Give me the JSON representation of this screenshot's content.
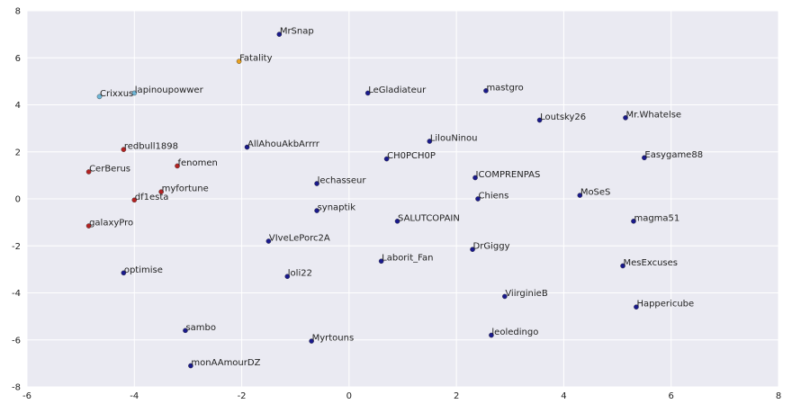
{
  "chart_data": {
    "type": "scatter",
    "title": "",
    "xlabel": "",
    "ylabel": "",
    "xlim": [
      -6,
      8
    ],
    "ylim": [
      -8,
      8
    ],
    "xticks": [
      -6,
      -4,
      -2,
      0,
      2,
      4,
      6,
      8
    ],
    "yticks": [
      -8,
      -6,
      -4,
      -2,
      0,
      2,
      4,
      6,
      8
    ],
    "grid": true,
    "colors": {
      "background": "#eaeaf2",
      "grid": "#ffffff",
      "navy": "#1a1a8c",
      "red": "#b22222",
      "orange": "#e8a020",
      "light_blue": "#6fb7d8"
    },
    "points": [
      {
        "label": "MrSnap",
        "x": -1.3,
        "y": 7.0,
        "color": "navy"
      },
      {
        "label": "Fatality",
        "x": -2.05,
        "y": 5.85,
        "color": "orange"
      },
      {
        "label": "Crixxus",
        "x": -4.65,
        "y": 4.35,
        "color": "light_blue"
      },
      {
        "label": "lapinoupowwer",
        "x": -4.0,
        "y": 4.5,
        "color": "light_blue"
      },
      {
        "label": "LeGladiateur",
        "x": 0.35,
        "y": 4.5,
        "color": "navy"
      },
      {
        "label": "mastgro",
        "x": 2.55,
        "y": 4.6,
        "color": "navy"
      },
      {
        "label": "Mr.Whatelse",
        "x": 5.15,
        "y": 3.45,
        "color": "navy"
      },
      {
        "label": "Loutsky26",
        "x": 3.55,
        "y": 3.35,
        "color": "navy"
      },
      {
        "label": "LilouNinou",
        "x": 1.5,
        "y": 2.45,
        "color": "navy"
      },
      {
        "label": "AllAhouAkbArrrr",
        "x": -1.9,
        "y": 2.2,
        "color": "navy"
      },
      {
        "label": "redbull1898",
        "x": -4.2,
        "y": 2.1,
        "color": "red"
      },
      {
        "label": "CH0PCH0P",
        "x": 0.7,
        "y": 1.7,
        "color": "navy"
      },
      {
        "label": "Easygame88",
        "x": 5.5,
        "y": 1.75,
        "color": "navy"
      },
      {
        "label": "fenomen",
        "x": -3.2,
        "y": 1.4,
        "color": "red"
      },
      {
        "label": "CerBerus",
        "x": -4.85,
        "y": 1.15,
        "color": "red"
      },
      {
        "label": "ICOMPRENPAS",
        "x": 2.35,
        "y": 0.9,
        "color": "navy"
      },
      {
        "label": "lechasseur",
        "x": -0.6,
        "y": 0.65,
        "color": "navy"
      },
      {
        "label": "myfortune",
        "x": -3.5,
        "y": 0.3,
        "color": "red"
      },
      {
        "label": "MoSeS",
        "x": 4.3,
        "y": 0.15,
        "color": "navy"
      },
      {
        "label": "Chiens",
        "x": 2.4,
        "y": 0.0,
        "color": "navy"
      },
      {
        "label": "df1esta",
        "x": -4.0,
        "y": -0.05,
        "color": "red"
      },
      {
        "label": "synaptik",
        "x": -0.6,
        "y": -0.5,
        "color": "navy"
      },
      {
        "label": "SALUTCOPAIN",
        "x": 0.9,
        "y": -0.95,
        "color": "navy"
      },
      {
        "label": "magma51",
        "x": 5.3,
        "y": -0.95,
        "color": "navy"
      },
      {
        "label": "galaxyPro",
        "x": -4.85,
        "y": -1.15,
        "color": "red"
      },
      {
        "label": "VIveLePorc2A",
        "x": -1.5,
        "y": -1.8,
        "color": "navy"
      },
      {
        "label": "DrGiggy",
        "x": 2.3,
        "y": -2.15,
        "color": "navy"
      },
      {
        "label": "Laborit_Fan",
        "x": 0.6,
        "y": -2.65,
        "color": "navy"
      },
      {
        "label": "MesExcuses",
        "x": 5.1,
        "y": -2.85,
        "color": "navy"
      },
      {
        "label": "optimise",
        "x": -4.2,
        "y": -3.15,
        "color": "navy"
      },
      {
        "label": "loli22",
        "x": -1.15,
        "y": -3.3,
        "color": "navy"
      },
      {
        "label": "ViirginieB",
        "x": 2.9,
        "y": -4.15,
        "color": "navy"
      },
      {
        "label": "Happericube",
        "x": 5.35,
        "y": -4.6,
        "color": "navy"
      },
      {
        "label": "sambo",
        "x": -3.05,
        "y": -5.6,
        "color": "navy"
      },
      {
        "label": "leoledingo",
        "x": 2.65,
        "y": -5.8,
        "color": "navy"
      },
      {
        "label": "Myrtouns",
        "x": -0.7,
        "y": -6.05,
        "color": "navy"
      },
      {
        "label": "monAAmourDZ",
        "x": -2.95,
        "y": -7.1,
        "color": "navy"
      }
    ]
  }
}
